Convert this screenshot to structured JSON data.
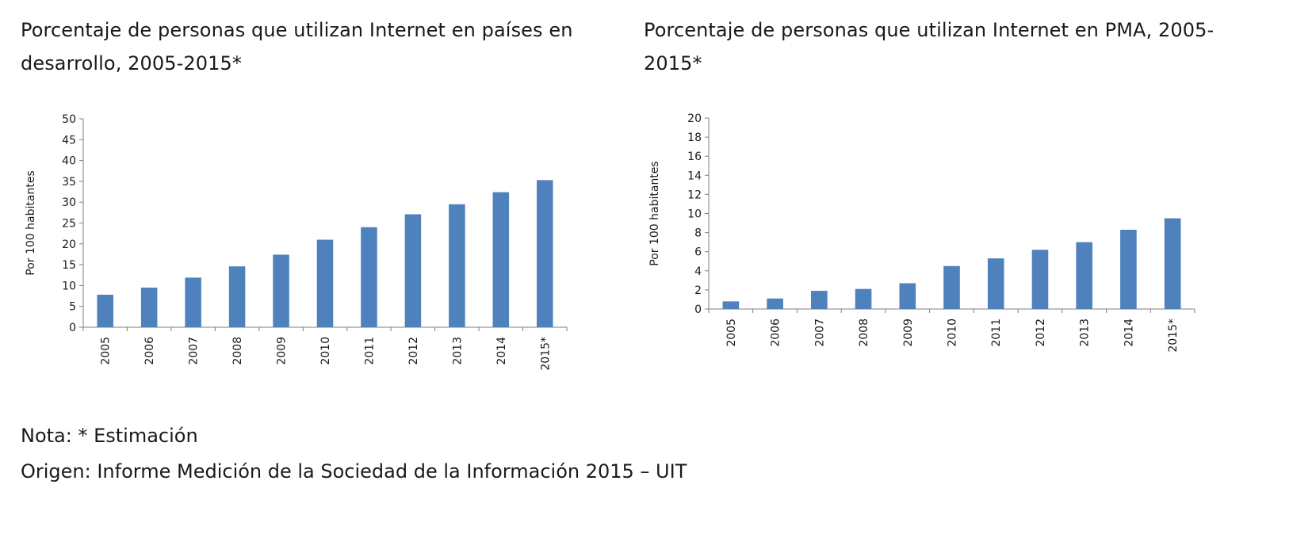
{
  "titles": {
    "left": "Porcentaje de personas que utilizan Internet en países en desarrollo, 2005-2015*",
    "right": "Porcentaje de personas que utilizan Internet en PMA, 2005-2015*"
  },
  "notes": {
    "nota": "Nota: * Estimación",
    "origen": "Origen: Informe Medición de la Sociedad de la Información 2015 – UIT"
  },
  "colors": {
    "bar": "#4f81bd",
    "axis": "#7f7f7f"
  },
  "chart_data": [
    {
      "type": "bar",
      "title": "Porcentaje de personas que utilizan Internet en países en desarrollo, 2005-2015*",
      "xlabel": "",
      "ylabel": "Por 100 habitantes",
      "categories": [
        "2005",
        "2006",
        "2007",
        "2008",
        "2009",
        "2010",
        "2011",
        "2012",
        "2013",
        "2014",
        "2015*"
      ],
      "values": [
        7.8,
        9.5,
        11.9,
        14.6,
        17.4,
        21.0,
        24.0,
        27.1,
        29.5,
        32.4,
        35.3
      ],
      "ylim": [
        0,
        50
      ],
      "yticks": [
        "0",
        "5",
        "10",
        "15",
        "20",
        "25",
        "30",
        "35",
        "40",
        "45",
        "50"
      ],
      "grid": false,
      "legend": "none"
    },
    {
      "type": "bar",
      "title": "Porcentaje de personas que utilizan Internet en PMA, 2005-2015*",
      "xlabel": "",
      "ylabel": "Por 100 habitantes",
      "categories": [
        "2005",
        "2006",
        "2007",
        "2008",
        "2009",
        "2010",
        "2011",
        "2012",
        "2013",
        "2014",
        "2015*"
      ],
      "values": [
        0.8,
        1.1,
        1.9,
        2.1,
        2.7,
        4.5,
        5.3,
        6.2,
        7.0,
        8.3,
        9.5
      ],
      "ylim": [
        0,
        20
      ],
      "yticks": [
        "0",
        "2",
        "4",
        "6",
        "8",
        "10",
        "12",
        "14",
        "16",
        "18",
        "20"
      ],
      "grid": false,
      "legend": "none"
    }
  ]
}
